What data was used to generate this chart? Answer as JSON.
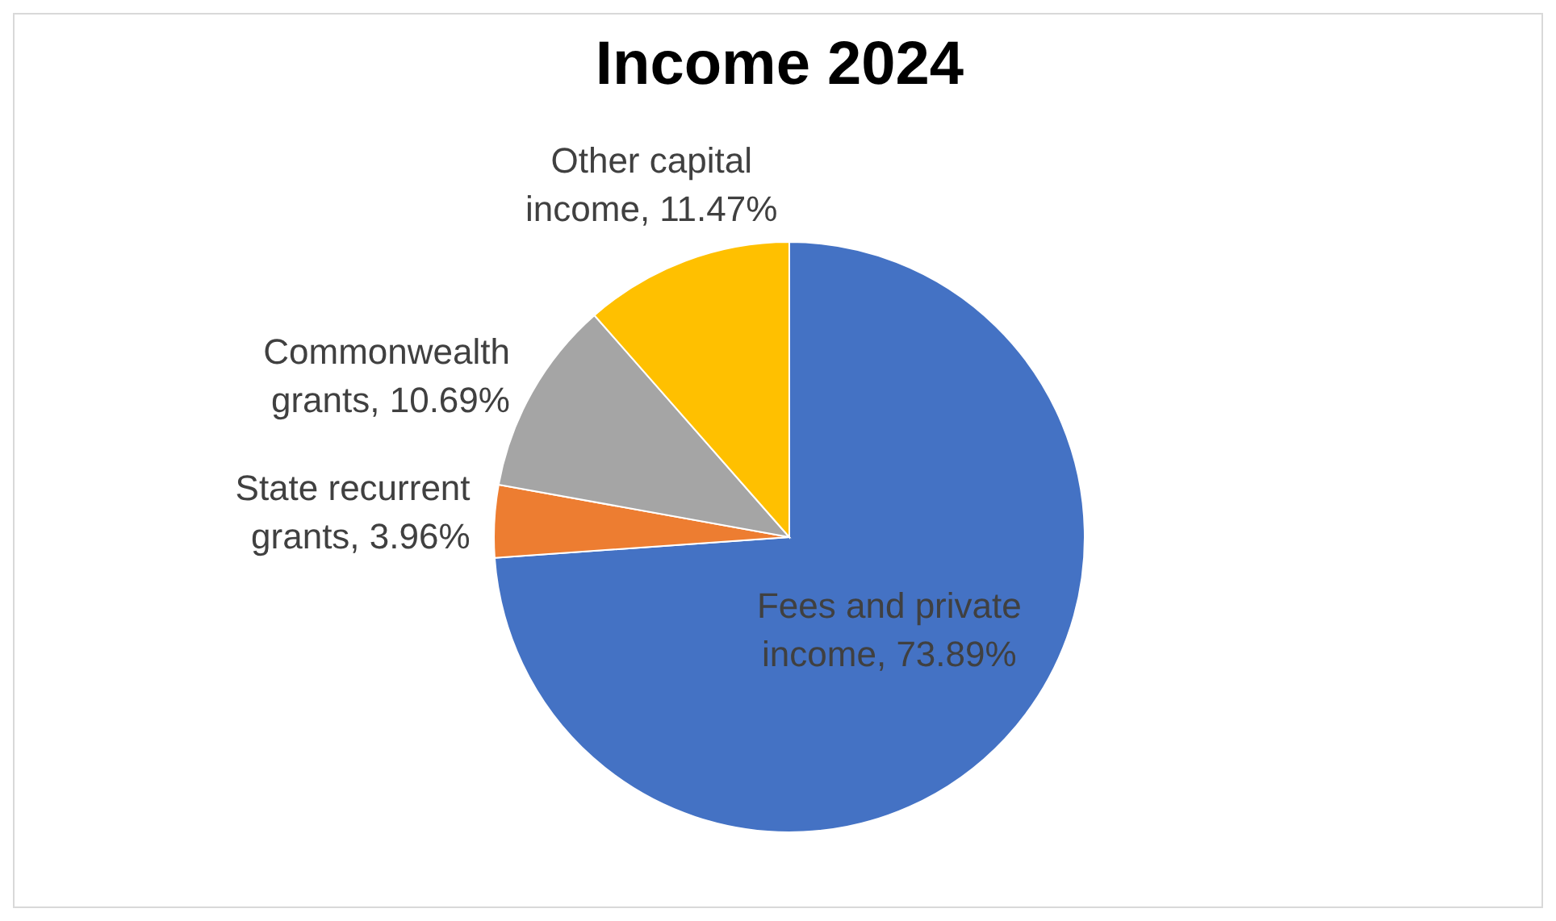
{
  "chart_data": {
    "type": "pie",
    "title": "Income 2024",
    "categories": [
      "Fees and private income",
      "State recurrent grants",
      "Commonwealth grants",
      "Other capital income"
    ],
    "values": [
      73.89,
      3.96,
      10.69,
      11.47
    ],
    "value_labels": [
      "73.89%",
      "3.96%",
      "10.69%",
      "11.47%"
    ],
    "colors": [
      "#4472c4",
      "#ed7d31",
      "#a5a5a5",
      "#ffc000"
    ]
  }
}
